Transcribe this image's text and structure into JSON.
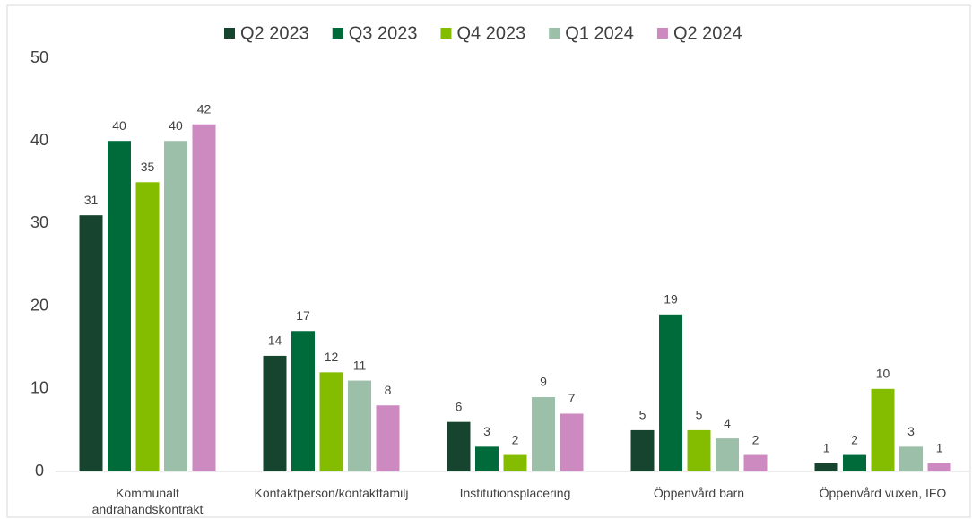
{
  "chart_data": {
    "type": "bar",
    "categories": [
      "Kommunalt andrahandskontrakt",
      "Kontaktperson/kontaktfamilj",
      "Institutionsplacering",
      "Öppenvård barn",
      "Öppenvård vuxen, IFO"
    ],
    "series": [
      {
        "name": "Q2 2023",
        "color": "#17442f",
        "values": [
          31,
          14,
          6,
          5,
          1
        ]
      },
      {
        "name": "Q3 2023",
        "color": "#006b3a",
        "values": [
          40,
          17,
          3,
          19,
          2
        ]
      },
      {
        "name": "Q4 2023",
        "color": "#84bd00",
        "values": [
          35,
          12,
          2,
          5,
          10
        ]
      },
      {
        "name": "Q1 2024",
        "color": "#9cbfaa",
        "values": [
          40,
          11,
          9,
          4,
          3
        ]
      },
      {
        "name": "Q2 2024",
        "color": "#cc8ac0",
        "values": [
          42,
          8,
          7,
          2,
          1
        ]
      }
    ],
    "ylim": [
      0,
      50
    ],
    "yticks": [
      0,
      10,
      20,
      30,
      40,
      50
    ],
    "grid": false,
    "legend": "top"
  }
}
